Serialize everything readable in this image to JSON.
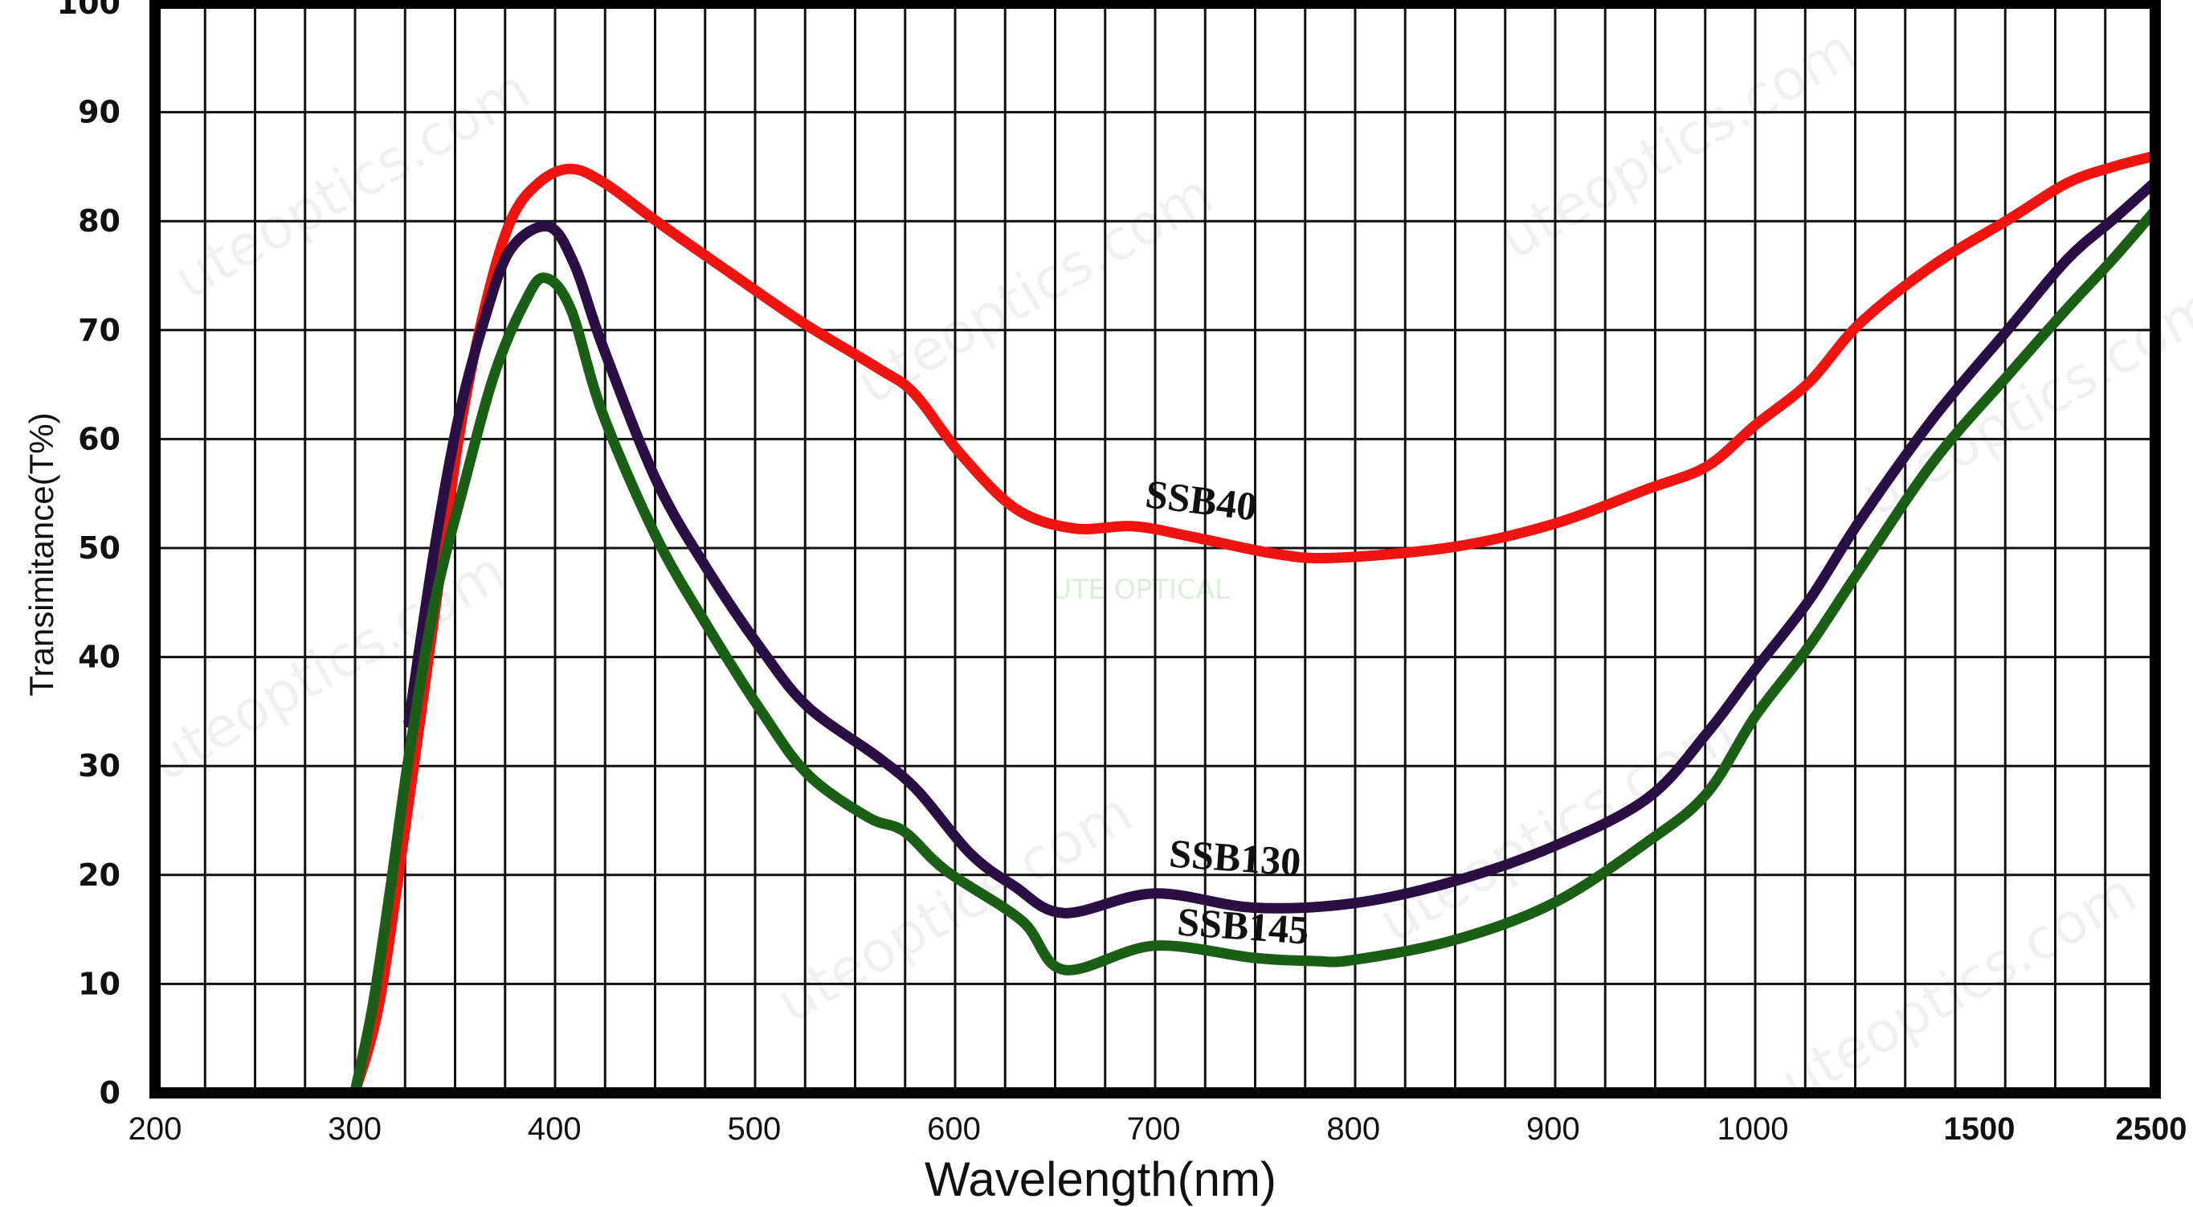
{
  "chart_data": {
    "type": "line",
    "title": "",
    "xlabel": "Wavelength(nm)",
    "ylabel": "Transimitance(T%)",
    "x_ticks": [
      200,
      300,
      400,
      500,
      600,
      700,
      800,
      900,
      1000,
      1500,
      2500
    ],
    "x_tick_labels": [
      "200",
      "300",
      "400",
      "500",
      "600",
      "700",
      "800",
      "900",
      "1000",
      "1500",
      "2500"
    ],
    "x_scale": "piecewise linear (200-1000 uniform, then compressed 1000-1500 and 1500-2500)",
    "y_ticks": [
      0,
      10,
      20,
      30,
      40,
      50,
      60,
      70,
      80,
      90,
      100
    ],
    "y_tick_labels": [
      "0",
      "10",
      "20",
      "30",
      "40",
      "50",
      "60",
      "70",
      "80",
      "90",
      "100"
    ],
    "xlim": [
      200,
      2500
    ],
    "ylim": [
      0,
      100
    ],
    "grid": true,
    "legend": "none (series labelled inline on curves)",
    "series": [
      {
        "name": "SSB40",
        "color": "#ef1410",
        "points": [
          [
            300,
            0
          ],
          [
            312,
            8
          ],
          [
            325,
            24
          ],
          [
            340,
            44
          ],
          [
            352,
            60
          ],
          [
            365,
            72
          ],
          [
            378,
            80
          ],
          [
            392,
            83.5
          ],
          [
            408,
            84.8
          ],
          [
            425,
            83.5
          ],
          [
            451,
            80
          ],
          [
            490,
            75
          ],
          [
            525,
            70.6
          ],
          [
            562,
            66.5
          ],
          [
            580,
            64.2
          ],
          [
            603,
            58.7
          ],
          [
            631,
            53.6
          ],
          [
            660,
            51.8
          ],
          [
            690,
            52
          ],
          [
            720,
            51
          ],
          [
            760,
            49.5
          ],
          [
            790,
            49.1
          ],
          [
            850,
            50.1
          ],
          [
            900,
            52.2
          ],
          [
            947,
            55.4
          ],
          [
            977,
            57.5
          ],
          [
            1006,
            61.3
          ],
          [
            1124,
            65.2
          ],
          [
            1236,
            70.6
          ],
          [
            1400,
            76
          ],
          [
            1671,
            80.2
          ],
          [
            2000,
            83.5
          ],
          [
            2264,
            85
          ],
          [
            2500,
            86
          ]
        ]
      },
      {
        "name": "SSB130",
        "color": "#2a0f45",
        "points": [
          [
            327,
            34
          ],
          [
            340,
            50
          ],
          [
            352,
            62
          ],
          [
            365,
            71
          ],
          [
            378,
            77.4
          ],
          [
            397,
            79.5
          ],
          [
            410,
            76
          ],
          [
            424,
            68.6
          ],
          [
            451,
            56.2
          ],
          [
            477,
            47.9
          ],
          [
            504,
            40.6
          ],
          [
            527,
            35.4
          ],
          [
            562,
            30.8
          ],
          [
            582,
            27.7
          ],
          [
            608,
            22
          ],
          [
            630,
            19
          ],
          [
            655,
            16.5
          ],
          [
            700,
            18.3
          ],
          [
            750,
            17
          ],
          [
            800,
            17.4
          ],
          [
            850,
            19.4
          ],
          [
            900,
            22.6
          ],
          [
            947,
            27
          ],
          [
            977,
            33
          ],
          [
            1006,
            38.9
          ],
          [
            1124,
            45.2
          ],
          [
            1236,
            52.5
          ],
          [
            1400,
            62
          ],
          [
            1671,
            70.2
          ],
          [
            2000,
            76.5
          ],
          [
            2264,
            80.2
          ],
          [
            2500,
            83.6
          ]
        ]
      },
      {
        "name": "SSB145",
        "color": "#1b5e16",
        "points": [
          [
            300,
            0
          ],
          [
            309,
            8
          ],
          [
            318,
            19
          ],
          [
            327,
            30.8
          ],
          [
            340,
            45
          ],
          [
            355,
            56
          ],
          [
            370,
            66
          ],
          [
            385,
            72.5
          ],
          [
            395,
            74.8
          ],
          [
            408,
            72
          ],
          [
            424,
            62.4
          ],
          [
            451,
            51
          ],
          [
            477,
            42.7
          ],
          [
            504,
            34.9
          ],
          [
            527,
            29.2
          ],
          [
            557,
            25.3
          ],
          [
            575,
            24
          ],
          [
            596,
            20.4
          ],
          [
            634,
            15.8
          ],
          [
            655,
            11.3
          ],
          [
            700,
            13.5
          ],
          [
            750,
            12.4
          ],
          [
            780,
            12.1
          ],
          [
            800,
            12.2
          ],
          [
            850,
            14
          ],
          [
            900,
            17.4
          ],
          [
            947,
            23
          ],
          [
            977,
            27.5
          ],
          [
            1006,
            34.6
          ],
          [
            1124,
            41
          ],
          [
            1236,
            48
          ],
          [
            1400,
            58
          ],
          [
            1671,
            66
          ],
          [
            2000,
            72
          ],
          [
            2264,
            76.6
          ],
          [
            2500,
            81
          ]
        ]
      }
    ],
    "annotations": [
      {
        "text": "SSB40",
        "series": "SSB40"
      },
      {
        "text": "SSB130",
        "series": "SSB130"
      },
      {
        "text": "SSB145",
        "series": "SSB145"
      }
    ]
  },
  "watermark": "uteoptics.com",
  "logo_text": "UTE OPTICAL"
}
